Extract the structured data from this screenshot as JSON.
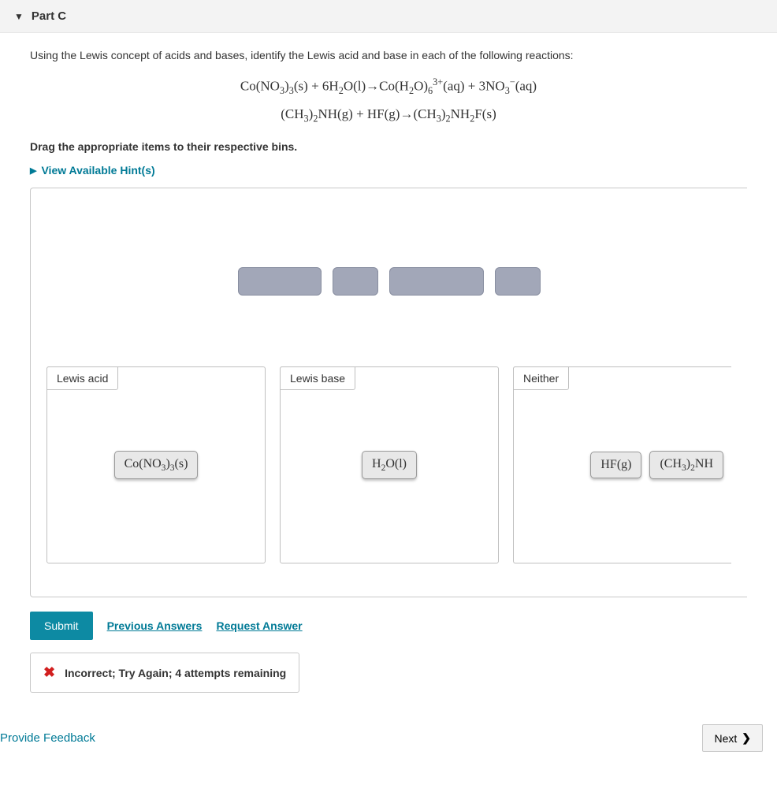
{
  "header": {
    "part_label": "Part C"
  },
  "question": {
    "prompt": "Using the Lewis concept of acids and bases, identify the Lewis acid and base in each of the following reactions:",
    "equation1_html": "Co(NO<sub>3</sub>)<sub>3</sub>(s) + 6H<sub>2</sub>O(l)→Co(H<sub>2</sub>O)<sub>6</sub><sup>3+</sup>(aq) + 3NO<sub>3</sub><sup>−</sup>(aq)",
    "equation2_html": "(CH<sub>3</sub>)<sub>2</sub>NH(g) + HF(g)→(CH<sub>3</sub>)<sub>2</sub>NH<sub>2</sub>F(s)",
    "drag_instruction": "Drag the appropriate items to their respective bins.",
    "hints_label": "View Available Hint(s)"
  },
  "bins": {
    "acid": {
      "label": "Lewis acid",
      "item1_html": "Co(NO<sub>3</sub>)<sub>3</sub>(s)"
    },
    "base": {
      "label": "Lewis base",
      "item1_html": "H<sub>2</sub>O(l)"
    },
    "neither": {
      "label": "Neither",
      "item1_html": "HF(g)",
      "item2_html": "(CH<sub>3</sub>)<sub>2</sub>NH"
    }
  },
  "actions": {
    "submit": "Submit",
    "previous_answers": "Previous Answers",
    "request_answer": "Request Answer"
  },
  "feedback": {
    "message": "Incorrect; Try Again; 4 attempts remaining"
  },
  "footer": {
    "provide_feedback": "Provide Feedback",
    "next": "Next"
  },
  "colors": {
    "accent": "#007a96",
    "submit_bg": "#0d8aa3",
    "error": "#d21f1f",
    "chip_bg": "#e8e8e8",
    "empty_chip_bg": "#a2a7b8",
    "header_bg": "#f3f3f3",
    "border": "#c8c8c8"
  }
}
